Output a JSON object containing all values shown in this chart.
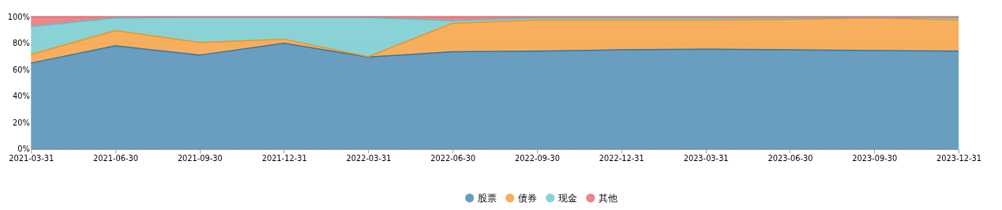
{
  "chart_data": {
    "type": "area",
    "stacked": true,
    "categories": [
      "2021-03-31",
      "2021-06-30",
      "2021-09-30",
      "2021-12-31",
      "2022-03-31",
      "2022-06-30",
      "2022-09-30",
      "2022-12-31",
      "2023-03-31",
      "2023-06-30",
      "2023-09-30",
      "2023-12-31"
    ],
    "series": [
      {
        "name": "股票",
        "color": "#2f78a8",
        "values": [
          65,
          78,
          71,
          80,
          69.5,
          73.5,
          74,
          75,
          75.5,
          75,
          74.5,
          74
        ]
      },
      {
        "name": "债券",
        "color": "#f5901f",
        "values": [
          6.5,
          11.5,
          9.5,
          3,
          0.3,
          21.5,
          23.5,
          22.5,
          22,
          23,
          24.5,
          23.5
        ]
      },
      {
        "name": "现金",
        "color": "#5cc2c6",
        "values": [
          21,
          9.5,
          19,
          16.5,
          29.5,
          2,
          1.5,
          1.5,
          1.5,
          1,
          0.5,
          1.5
        ]
      },
      {
        "name": "其他",
        "color": "#e3575f",
        "values": [
          7.5,
          1,
          0.5,
          0.5,
          0.7,
          3,
          1,
          1,
          1,
          1,
          0.5,
          1
        ]
      }
    ],
    "ylim": [
      0,
      100
    ],
    "yticks": [
      {
        "value": 0,
        "label": "0%"
      },
      {
        "value": 20,
        "label": "20%"
      },
      {
        "value": 40,
        "label": "40%"
      },
      {
        "value": 60,
        "label": "60%"
      },
      {
        "value": 80,
        "label": "80%"
      },
      {
        "value": 100,
        "label": "100%"
      }
    ],
    "grid": "y",
    "legend": "bottom"
  }
}
